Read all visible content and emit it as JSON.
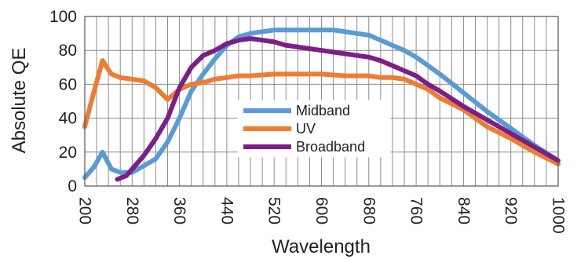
{
  "chart_data": {
    "type": "line",
    "title": "",
    "xlabel": "Wavelength",
    "ylabel": "Absolute QE",
    "xlim": [
      200,
      1000
    ],
    "ylim": [
      0,
      100
    ],
    "x_ticks": [
      200,
      280,
      360,
      440,
      520,
      600,
      680,
      760,
      840,
      920,
      1000
    ],
    "x_tick_labels": [
      "200",
      "280",
      "360",
      "440",
      "520",
      "600",
      "680",
      "760",
      "840",
      "920",
      "1000"
    ],
    "y_ticks": [
      0,
      20,
      40,
      60,
      80,
      100
    ],
    "y_tick_labels": [
      "0",
      "20",
      "40",
      "60",
      "80",
      "100"
    ],
    "grid": true,
    "legend_position": "center",
    "series": [
      {
        "name": "Midband",
        "color": "#5b9bd5",
        "points": [
          [
            200,
            5
          ],
          [
            215,
            11
          ],
          [
            230,
            20
          ],
          [
            245,
            10
          ],
          [
            260,
            8
          ],
          [
            280,
            8
          ],
          [
            300,
            12
          ],
          [
            320,
            16
          ],
          [
            340,
            26
          ],
          [
            360,
            40
          ],
          [
            380,
            56
          ],
          [
            400,
            66
          ],
          [
            420,
            75
          ],
          [
            440,
            83
          ],
          [
            460,
            88
          ],
          [
            480,
            90
          ],
          [
            500,
            91
          ],
          [
            520,
            92
          ],
          [
            560,
            92
          ],
          [
            600,
            92
          ],
          [
            620,
            92
          ],
          [
            640,
            91
          ],
          [
            660,
            90
          ],
          [
            680,
            89
          ],
          [
            700,
            86
          ],
          [
            720,
            83
          ],
          [
            740,
            80
          ],
          [
            760,
            76
          ],
          [
            780,
            71
          ],
          [
            800,
            66
          ],
          [
            840,
            55
          ],
          [
            880,
            44
          ],
          [
            920,
            34
          ],
          [
            960,
            24
          ],
          [
            1000,
            15
          ]
        ]
      },
      {
        "name": "UV",
        "color": "#ed7d31",
        "points": [
          [
            200,
            35
          ],
          [
            215,
            55
          ],
          [
            230,
            74
          ],
          [
            245,
            66
          ],
          [
            260,
            64
          ],
          [
            280,
            63
          ],
          [
            300,
            62
          ],
          [
            320,
            58
          ],
          [
            340,
            51
          ],
          [
            360,
            57
          ],
          [
            380,
            60
          ],
          [
            400,
            61
          ],
          [
            420,
            63
          ],
          [
            440,
            64
          ],
          [
            460,
            65
          ],
          [
            480,
            65
          ],
          [
            520,
            66
          ],
          [
            560,
            66
          ],
          [
            600,
            66
          ],
          [
            640,
            65
          ],
          [
            680,
            65
          ],
          [
            700,
            64
          ],
          [
            720,
            64
          ],
          [
            740,
            63
          ],
          [
            760,
            60
          ],
          [
            780,
            57
          ],
          [
            800,
            52
          ],
          [
            840,
            45
          ],
          [
            880,
            35
          ],
          [
            920,
            28
          ],
          [
            960,
            20
          ],
          [
            1000,
            13
          ]
        ]
      },
      {
        "name": "Broadband",
        "color": "#7b1f87",
        "points": [
          [
            255,
            4
          ],
          [
            270,
            6
          ],
          [
            285,
            12
          ],
          [
            300,
            18
          ],
          [
            320,
            28
          ],
          [
            340,
            40
          ],
          [
            360,
            58
          ],
          [
            380,
            70
          ],
          [
            400,
            77
          ],
          [
            420,
            80
          ],
          [
            440,
            84
          ],
          [
            460,
            86
          ],
          [
            480,
            87
          ],
          [
            500,
            86
          ],
          [
            520,
            85
          ],
          [
            540,
            83
          ],
          [
            560,
            82
          ],
          [
            580,
            81
          ],
          [
            600,
            80
          ],
          [
            620,
            79
          ],
          [
            640,
            78
          ],
          [
            660,
            77
          ],
          [
            680,
            76
          ],
          [
            700,
            74
          ],
          [
            720,
            71
          ],
          [
            740,
            68
          ],
          [
            760,
            65
          ],
          [
            780,
            60
          ],
          [
            800,
            56
          ],
          [
            840,
            47
          ],
          [
            880,
            39
          ],
          [
            920,
            31
          ],
          [
            960,
            23
          ],
          [
            1000,
            15
          ]
        ]
      }
    ]
  }
}
